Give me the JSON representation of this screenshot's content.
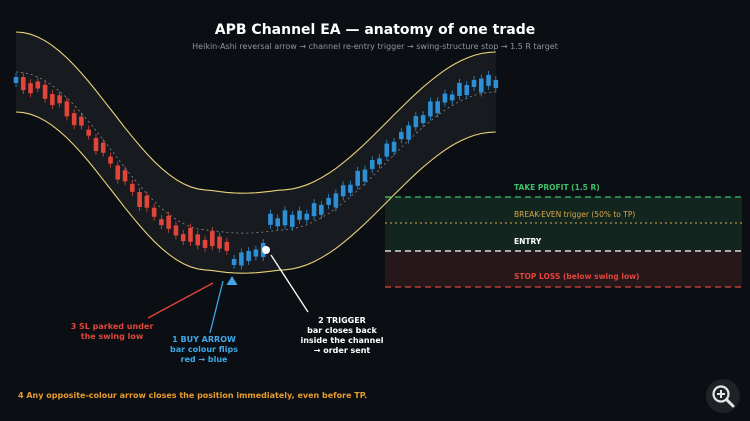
{
  "title": "APB Channel EA  —  anatomy of one trade",
  "subtitle": "Heikin-Ashi reversal arrow  →  channel re-entry trigger  →  swing-structure stop  →  1.5 R target",
  "colors": {
    "background": "#0b0f14",
    "bull": "#2d8fd6",
    "bear": "#e0453a",
    "channel": "#e8d27a",
    "midline": "#8a8a8a",
    "tp": "#3fbf6a",
    "breakeven": "#d9a94a",
    "entry": "#ffffff",
    "stop": "#e0453a",
    "arrow": "#3fa7e8",
    "note": "#e89b2e"
  },
  "levels": {
    "take_profit": "TAKE PROFIT  (1.5 R)",
    "break_even": "BREAK-EVEN trigger (50% to TP)",
    "entry": "ENTRY",
    "stop_loss": "STOP LOSS  (below swing low)"
  },
  "annotations": {
    "trigger": [
      "2  TRIGGER",
      "bar closes back",
      "inside the channel",
      "→ order sent"
    ],
    "buy_arrow": [
      "1  BUY ARROW",
      "bar colour flips",
      "red → blue"
    ],
    "sl_parked": [
      "3  SL parked under",
      "the swing low"
    ],
    "note": "4   Any opposite-colour arrow closes the position immediately, even before TP."
  },
  "icons": {
    "zoom": "zoom-in-icon"
  },
  "chart_data": {
    "type": "candlestick",
    "levels": {
      "take_profit": 1.5,
      "break_even": 0.75,
      "entry": 0,
      "stop_loss": -1.0
    },
    "bar_colour": "blue = bullish Heikin-Ashi, red = bearish Heikin-Ashi",
    "buy_arrow_bar_index": 30,
    "trigger_bar_index": 34,
    "swing_low_bar_index": 27
  }
}
